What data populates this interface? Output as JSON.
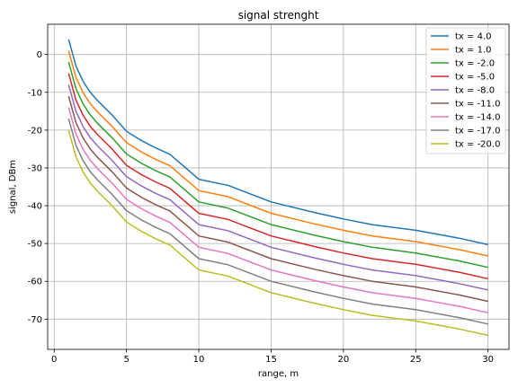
{
  "chart_data": {
    "type": "line",
    "title": "signal strenght",
    "xlabel": "range, m",
    "ylabel": "signal, DBm",
    "xlim": [
      -0.45,
      31.45
    ],
    "ylim": [
      -78,
      8
    ],
    "xticks": [
      0,
      5,
      10,
      15,
      20,
      25,
      30
    ],
    "yticks": [
      0,
      -10,
      -20,
      -30,
      -40,
      -50,
      -60,
      -70
    ],
    "grid": true,
    "legend_position": "top-right",
    "x": [
      1,
      1.5,
      2,
      2.5,
      3,
      4,
      5,
      6,
      7,
      8,
      10,
      12,
      15,
      18,
      20,
      22,
      25,
      28,
      30
    ],
    "series": [
      {
        "name": "tx = 4.0",
        "color": "#1f77b4",
        "values": [
          4.0,
          -3.0,
          -7.1,
          -10.0,
          -12.2,
          -16.0,
          -20.3,
          -22.7,
          -24.7,
          -26.4,
          -33.0,
          -34.6,
          -39.0,
          -41.8,
          -43.5,
          -45.0,
          -46.5,
          -48.6,
          -50.3
        ]
      },
      {
        "name": "tx = 1.0",
        "color": "#ff7f0e",
        "values": [
          1.0,
          -6.0,
          -10.1,
          -13.0,
          -15.2,
          -19.0,
          -23.3,
          -25.7,
          -27.7,
          -29.4,
          -36.0,
          -37.6,
          -42.0,
          -44.8,
          -46.5,
          -48.0,
          -49.5,
          -51.6,
          -53.3
        ]
      },
      {
        "name": "tx = -2.0",
        "color": "#2ca02c",
        "values": [
          -2.0,
          -9.0,
          -13.1,
          -16.0,
          -18.2,
          -22.0,
          -26.3,
          -28.7,
          -30.7,
          -32.4,
          -39.0,
          -40.6,
          -45.0,
          -47.8,
          -49.5,
          -51.0,
          -52.5,
          -54.6,
          -56.3
        ]
      },
      {
        "name": "tx = -5.0",
        "color": "#d62728",
        "values": [
          -5.0,
          -12.0,
          -16.1,
          -19.0,
          -21.2,
          -25.0,
          -29.3,
          -31.7,
          -33.7,
          -35.4,
          -42.0,
          -43.6,
          -48.0,
          -50.8,
          -52.5,
          -54.0,
          -55.5,
          -57.6,
          -59.3
        ]
      },
      {
        "name": "tx = -8.0",
        "color": "#9467bd",
        "values": [
          -8.0,
          -15.0,
          -19.1,
          -22.0,
          -24.2,
          -28.0,
          -32.3,
          -34.7,
          -36.7,
          -38.4,
          -45.0,
          -46.6,
          -51.0,
          -53.8,
          -55.5,
          -57.0,
          -58.5,
          -60.6,
          -62.3
        ]
      },
      {
        "name": "tx = -11.0",
        "color": "#8c564b",
        "values": [
          -11.0,
          -18.0,
          -22.1,
          -25.0,
          -27.2,
          -31.0,
          -35.3,
          -37.7,
          -39.7,
          -41.4,
          -48.0,
          -49.6,
          -54.0,
          -56.8,
          -58.5,
          -60.0,
          -61.5,
          -63.6,
          -65.3
        ]
      },
      {
        "name": "tx = -14.0",
        "color": "#e377c2",
        "values": [
          -14.0,
          -21.0,
          -25.1,
          -28.0,
          -30.2,
          -34.0,
          -38.3,
          -40.7,
          -42.7,
          -44.4,
          -51.0,
          -52.6,
          -57.0,
          -59.8,
          -61.5,
          -63.0,
          -64.5,
          -66.6,
          -68.3
        ]
      },
      {
        "name": "tx = -17.0",
        "color": "#7f7f7f",
        "values": [
          -17.0,
          -24.0,
          -28.1,
          -31.0,
          -33.2,
          -37.0,
          -41.3,
          -43.7,
          -45.7,
          -47.4,
          -54.0,
          -55.6,
          -60.0,
          -62.8,
          -64.5,
          -66.0,
          -67.5,
          -69.6,
          -71.3
        ]
      },
      {
        "name": "tx = -20.0",
        "color": "#bcbd22",
        "values": [
          -20.0,
          -27.0,
          -31.1,
          -34.0,
          -36.2,
          -40.0,
          -44.3,
          -46.7,
          -48.7,
          -50.4,
          -57.0,
          -58.6,
          -63.0,
          -65.8,
          -67.5,
          -69.0,
          -70.5,
          -72.6,
          -74.3
        ]
      }
    ]
  }
}
